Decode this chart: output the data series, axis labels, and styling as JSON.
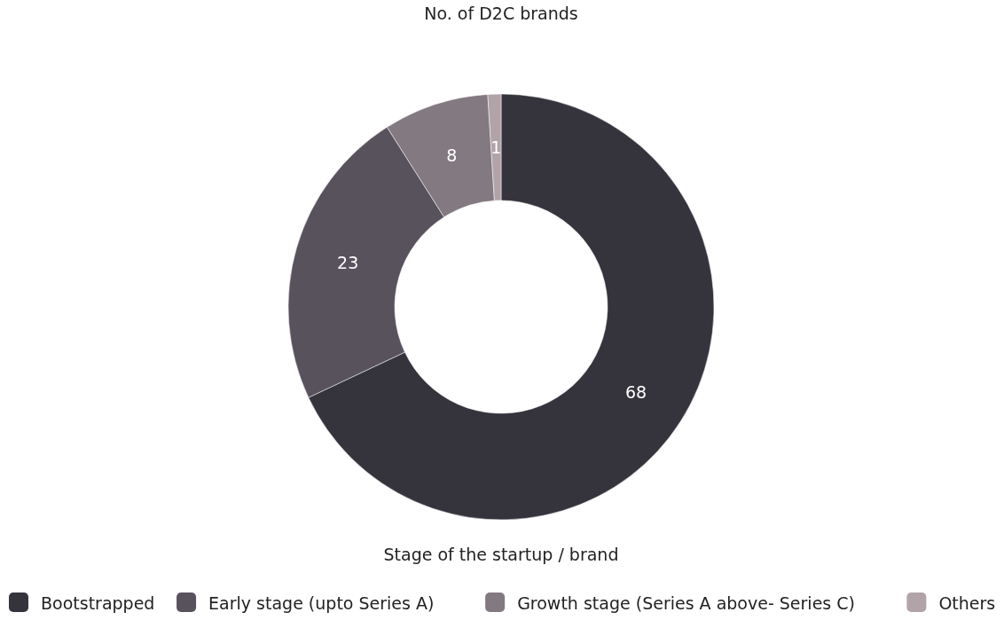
{
  "chart_data": {
    "type": "donut",
    "title": "No. of D2C brands",
    "xlabel": "Stage of the startup / brand",
    "categories": [
      "Bootstrapped",
      "Early stage (upto Series A)",
      "Growth stage (Series A above- Series C)",
      "Others"
    ],
    "values": [
      68,
      23,
      8,
      1
    ],
    "colors": [
      "#35343c",
      "#58525d",
      "#827a80",
      "#b1a3a8"
    ],
    "data_labels": true,
    "legend": "bottom"
  }
}
